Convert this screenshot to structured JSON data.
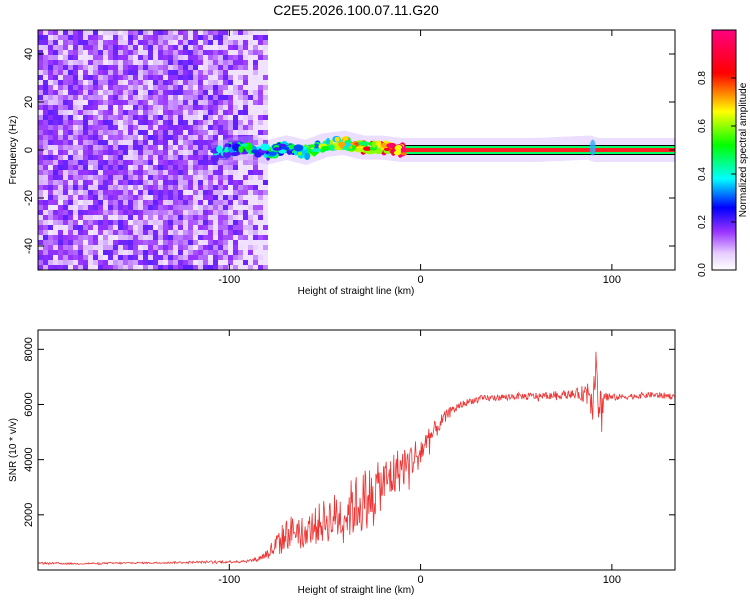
{
  "page": {
    "title": "C2E5.2026.100.07.11.G20"
  },
  "chart_data": [
    {
      "type": "heatmap",
      "title": "C2E5.2026.100.07.11.G20",
      "xlabel": "Height of straight line (km)",
      "ylabel": "Frequency (Hz)",
      "xlim": [
        -200,
        133
      ],
      "ylim": [
        -50,
        50
      ],
      "xticks": [
        -100,
        0,
        100
      ],
      "xtick_labels": [
        "-100",
        "0",
        "100"
      ],
      "yticks": [
        -40,
        -20,
        0,
        20,
        40
      ],
      "ytick_labels": [
        "-40",
        "-20",
        "0",
        "20",
        "40"
      ],
      "colorbar": {
        "label": "Normalized spectral amplitude",
        "range": [
          0.0,
          1.0
        ],
        "ticks": [
          0.0,
          0.2,
          0.4,
          0.6,
          0.8
        ],
        "tick_labels": [
          "0.0",
          "0.2",
          "0.4",
          "0.6",
          "0.8"
        ],
        "colors": [
          "#ffffff",
          "#9933ff",
          "#0000ff",
          "#00ffff",
          "#00ff00",
          "#ffff00",
          "#ff0000",
          "#ff0080"
        ]
      },
      "noise_region_x": [
        -200,
        -82
      ],
      "signal_line": {
        "x": [
          -108,
          -100,
          -90,
          -80,
          -70,
          -60,
          -50,
          -40,
          -30,
          -20,
          -10,
          0,
          20,
          60,
          88,
          92,
          133
        ],
        "freq": [
          -2,
          0,
          1,
          -1,
          1,
          -1,
          2,
          3,
          1,
          1,
          0,
          0,
          0,
          0,
          1,
          0,
          0
        ],
        "amplitude": [
          0.3,
          0.35,
          0.4,
          0.4,
          0.45,
          0.5,
          0.55,
          0.6,
          0.7,
          0.8,
          0.9,
          0.95,
          0.95,
          0.95,
          0.9,
          0.95,
          0.95
        ]
      }
    },
    {
      "type": "line",
      "xlabel": "Height of straight line (km)",
      "ylabel": "SNR (10 * v/v)",
      "xlim": [
        -200,
        133
      ],
      "ylim": [
        0,
        8700
      ],
      "xticks": [
        -100,
        0,
        100
      ],
      "xtick_labels": [
        "-100",
        "0",
        "100"
      ],
      "yticks": [
        2000,
        4000,
        6000,
        8000
      ],
      "ytick_labels": [
        "2000",
        "4000",
        "6000",
        "8000"
      ],
      "series": [
        {
          "name": "SNR",
          "color": "#ee3333",
          "x": [
            -200,
            -180,
            -160,
            -140,
            -120,
            -100,
            -90,
            -85,
            -80,
            -75,
            -70,
            -65,
            -60,
            -55,
            -50,
            -45,
            -40,
            -35,
            -30,
            -25,
            -20,
            -15,
            -10,
            -5,
            0,
            5,
            10,
            15,
            20,
            25,
            30,
            40,
            50,
            60,
            70,
            80,
            85,
            88,
            90,
            92,
            94,
            96,
            100,
            110,
            120,
            133
          ],
          "values": [
            250,
            230,
            250,
            260,
            280,
            300,
            330,
            400,
            600,
            900,
            1300,
            1500,
            1400,
            1600,
            1800,
            1900,
            2000,
            2300,
            2500,
            2800,
            3100,
            3400,
            3700,
            4000,
            4300,
            4800,
            5300,
            5700,
            5950,
            6100,
            6200,
            6250,
            6300,
            6300,
            6350,
            6380,
            6400,
            6500,
            6300,
            6900,
            5800,
            6300,
            6250,
            6300,
            6350,
            6300
          ],
          "jitter": [
            30,
            30,
            30,
            30,
            40,
            50,
            60,
            80,
            200,
            500,
            600,
            600,
            500,
            700,
            800,
            900,
            1000,
            1100,
            1200,
            1000,
            900,
            900,
            800,
            700,
            600,
            400,
            300,
            200,
            150,
            120,
            120,
            120,
            120,
            130,
            130,
            150,
            300,
            700,
            900,
            1200,
            1000,
            300,
            120,
            110,
            110,
            110
          ]
        }
      ]
    }
  ]
}
